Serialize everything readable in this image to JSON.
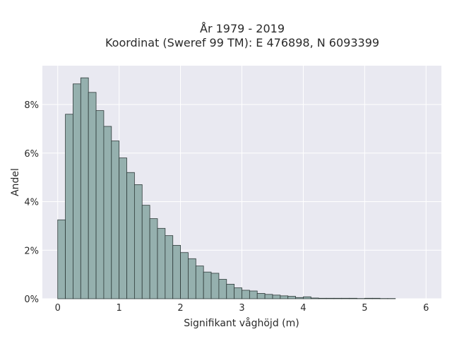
{
  "chart_data": {
    "type": "bar",
    "title_line1": "År 1979 - 2019",
    "title_line2": "Koordinat (Sweref 99 TM): E 476898, N 6093399",
    "xlabel": "Signifikant våghöjd (m)",
    "ylabel": "Andel",
    "xlim": [
      -0.25,
      6.25
    ],
    "ylim": [
      0,
      9.6
    ],
    "bin_width": 0.125,
    "bin_start": 0.0,
    "values": [
      3.25,
      7.6,
      8.85,
      9.1,
      8.5,
      7.75,
      7.1,
      6.5,
      5.8,
      5.2,
      4.7,
      3.85,
      3.3,
      2.9,
      2.6,
      2.2,
      1.9,
      1.65,
      1.35,
      1.1,
      1.05,
      0.8,
      0.6,
      0.45,
      0.35,
      0.32,
      0.22,
      0.18,
      0.15,
      0.12,
      0.1,
      0.05,
      0.08,
      0.03,
      0.02,
      0.02,
      0.02,
      0.02,
      0.02,
      0.01,
      0.02,
      0.02,
      0.01,
      0.01
    ],
    "x_ticks": [
      0,
      1,
      2,
      3,
      4,
      5,
      6
    ],
    "x_tick_labels": [
      "0",
      "1",
      "2",
      "3",
      "4",
      "5",
      "6"
    ],
    "y_ticks": [
      0,
      2,
      4,
      6,
      8
    ],
    "y_tick_labels": [
      "0%",
      "2%",
      "4%",
      "6%",
      "8%"
    ],
    "grid": true,
    "bar_color": "#95b0ae",
    "bar_edge_color": "#2f3b3a",
    "plot_background": "#e9e9f1"
  }
}
